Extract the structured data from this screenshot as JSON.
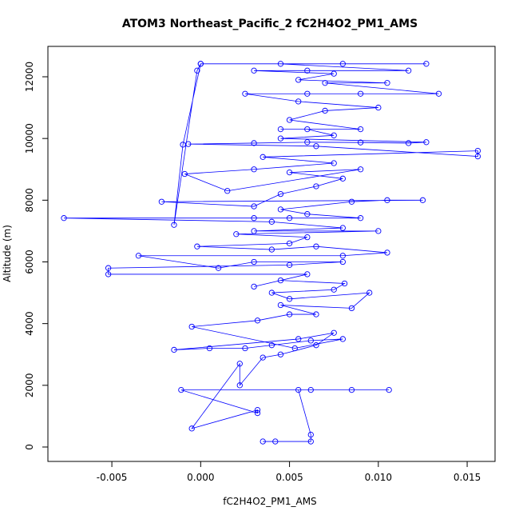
{
  "chart_data": {
    "type": "line",
    "title": "ATOM3 Northeast_Pacific_2 fC2H4O2_PM1_AMS",
    "x_label": "fC2H4O2_PM1_AMS",
    "y_label": "Altitude (m)",
    "color": "#0000ff",
    "xlim": [
      -0.0086,
      0.01657
    ],
    "ylim": [
      -467,
      12985
    ],
    "xticks": [
      -0.005,
      {
        "value": 0,
        "label": "0.000"
      },
      0.005,
      {
        "value": 0.01,
        "label": "0.010"
      },
      0.015
    ],
    "yticks": [
      0,
      2000,
      4000,
      6000,
      8000,
      10000,
      12000
    ],
    "x": [
      0.0042,
      0.0035,
      0.0062,
      0.0062,
      0.0055,
      0.0085,
      0.0106,
      0.0062,
      -0.0011,
      0.0032,
      0.0032,
      -0.0005,
      0.0022,
      0.0022,
      0.0035,
      0.0045,
      0.0065,
      0.0075,
      0.0055,
      -0.0015,
      0.0005,
      0.0025,
      0.004,
      0.0062,
      0.008,
      0.0053,
      -0.0005,
      0.0032,
      0.005,
      0.0065,
      0.0045,
      0.0085,
      0.0095,
      0.005,
      0.004,
      0.0075,
      0.0081,
      0.0045,
      0.003,
      0.006,
      -0.0052,
      -0.0052,
      0.005,
      0.008,
      0.003,
      0.001,
      -0.0035,
      0.008,
      0.0105,
      0.0065,
      0.004,
      -0.0002,
      0.005,
      0.006,
      0.002,
      0.01,
      0.003,
      0.008,
      0.004,
      -0.0077,
      0.003,
      0.005,
      0.009,
      0.006,
      0.0045,
      0.0085,
      0.0105,
      0.0125,
      -0.0022,
      0.003,
      0.0045,
      0.0065,
      0.008,
      0.005,
      0.009,
      0.0015,
      -0.0009,
      0.003,
      0.0075,
      0.0035,
      0.0156,
      0.0156,
      0.0065,
      -0.0007,
      0.003,
      0.006,
      0.009,
      0.0117,
      0.0127,
      0.0045,
      0.0075,
      0.006,
      0.0045,
      0.009,
      0.005,
      0.007,
      0.01,
      0.0055,
      0.0025,
      0.006,
      0.009,
      0.0134,
      0.007,
      0.0105,
      0.0055,
      0.0075,
      0.003,
      0.006,
      0.0117,
      0.0045,
      0.008,
      0.0127,
      0,
      -0.0002,
      -0.0015,
      -0.001,
      0
    ],
    "values": [
      180,
      180,
      180,
      400,
      1850,
      1850,
      1850,
      1850,
      1850,
      1100,
      1200,
      600,
      2700,
      2000,
      2900,
      3000,
      3300,
      3700,
      3500,
      3150,
      3200,
      3200,
      3300,
      3450,
      3500,
      3200,
      3900,
      4100,
      4300,
      4300,
      4600,
      4500,
      5000,
      4800,
      5000,
      5100,
      5300,
      5400,
      5200,
      5600,
      5600,
      5800,
      5900,
      6000,
      6000,
      5800,
      6200,
      6200,
      6300,
      6500,
      6400,
      6500,
      6600,
      6800,
      6900,
      7000,
      7000,
      7100,
      7300,
      7420,
      7420,
      7420,
      7420,
      7550,
      7700,
      7950,
      8000,
      8000,
      7950,
      7800,
      8200,
      8450,
      8700,
      8900,
      9000,
      8300,
      8850,
      9000,
      9200,
      9400,
      9600,
      9420,
      9750,
      9820,
      9850,
      9880,
      9870,
      9850,
      9880,
      10000,
      10100,
      10300,
      10300,
      10300,
      10600,
      10900,
      11000,
      11200,
      11450,
      11450,
      11450,
      11450,
      11800,
      11800,
      11900,
      12100,
      12200,
      12200,
      12200,
      12420,
      12420,
      12420,
      12420,
      12200,
      7200,
      9800,
      12420
    ]
  }
}
